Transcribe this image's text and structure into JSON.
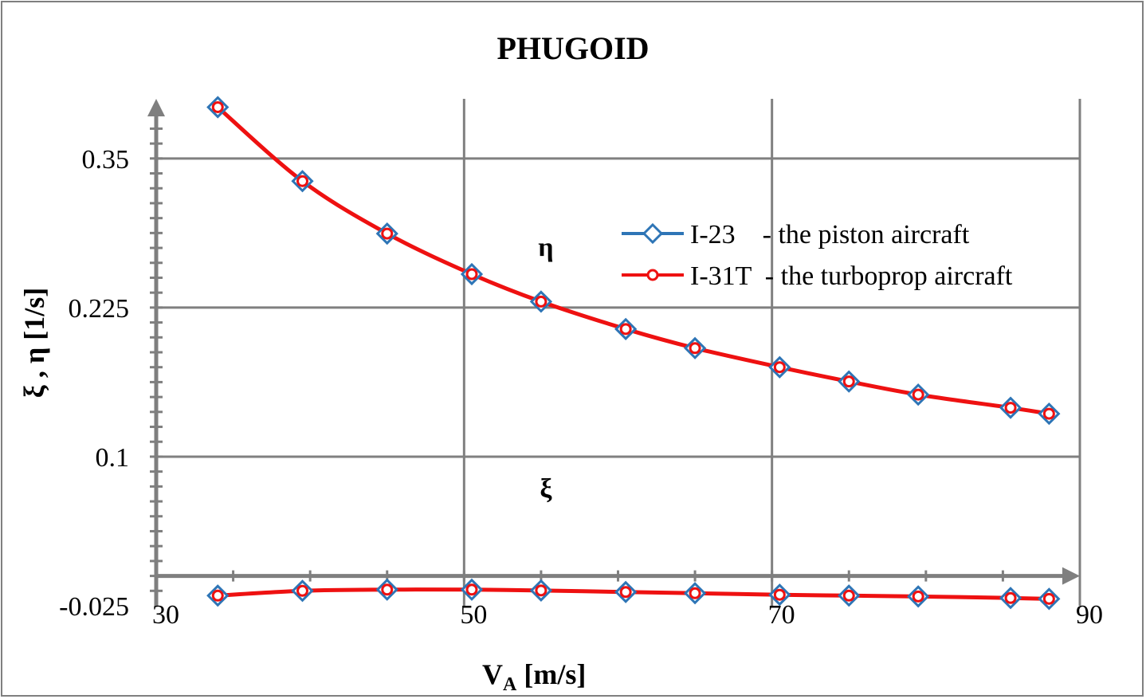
{
  "chart_data": {
    "type": "line",
    "title": "PHUGOID",
    "xlabel": "V",
    "xlabel_sub": "A",
    "xlabel_unit": " [m/s]",
    "ylabel": "ξ , η [1/s]",
    "xlim": [
      30,
      90
    ],
    "ylim": [
      -0.025,
      0.4
    ],
    "xticks": [
      30,
      50,
      70,
      90
    ],
    "xtick_labels": [
      "30",
      "50",
      "70",
      "90"
    ],
    "yticks": [
      -0.025,
      0.1,
      0.225,
      0.35
    ],
    "ytick_labels": [
      "-0.025",
      "0.1",
      "0.225",
      "0.35"
    ],
    "annotations": [
      {
        "text": "η",
        "x": 55,
        "y": 0.268
      },
      {
        "text": "ξ",
        "x": 55,
        "y": 0.066
      }
    ],
    "legend": [
      "I-23    - the piston aircraft",
      "I-31T  - the turboprop aircraft"
    ],
    "colors": {
      "I-23": "#2e75b6",
      "I-31T": "#ee1111",
      "grid": "#808080",
      "axis": "#7f7f7f"
    },
    "series": [
      {
        "name": "I-23",
        "label": "η",
        "marker": "diamond",
        "x": [
          34,
          39.5,
          45,
          50.5,
          55,
          60.5,
          65,
          70.5,
          75,
          79.5,
          85.5,
          88
        ],
        "y": [
          0.393,
          0.331,
          0.287,
          0.253,
          0.23,
          0.207,
          0.191,
          0.175,
          0.163,
          0.152,
          0.141,
          0.136
        ]
      },
      {
        "name": "I-31T",
        "label": "η",
        "marker": "circle",
        "x": [
          34,
          39.5,
          45,
          50.5,
          55,
          60.5,
          65,
          70.5,
          75,
          79.5,
          85.5,
          88
        ],
        "y": [
          0.393,
          0.331,
          0.287,
          0.253,
          0.23,
          0.207,
          0.191,
          0.175,
          0.163,
          0.152,
          0.141,
          0.136
        ]
      },
      {
        "name": "I-23",
        "label": "ξ",
        "marker": "diamond",
        "x": [
          34,
          39.5,
          45,
          50.5,
          55,
          60.5,
          65,
          70.5,
          75,
          79.5,
          85.5,
          88
        ],
        "y": [
          -0.0165,
          -0.0125,
          -0.0115,
          -0.0115,
          -0.0122,
          -0.0135,
          -0.0145,
          -0.0158,
          -0.0165,
          -0.0172,
          -0.0185,
          -0.0192
        ]
      },
      {
        "name": "I-31T",
        "label": "ξ",
        "marker": "circle",
        "x": [
          34,
          39.5,
          45,
          50.5,
          55,
          60.5,
          65,
          70.5,
          75,
          79.5,
          85.5,
          88
        ],
        "y": [
          -0.0165,
          -0.0125,
          -0.0115,
          -0.0115,
          -0.0122,
          -0.0135,
          -0.0145,
          -0.0158,
          -0.0165,
          -0.0172,
          -0.0185,
          -0.0192
        ]
      }
    ]
  }
}
